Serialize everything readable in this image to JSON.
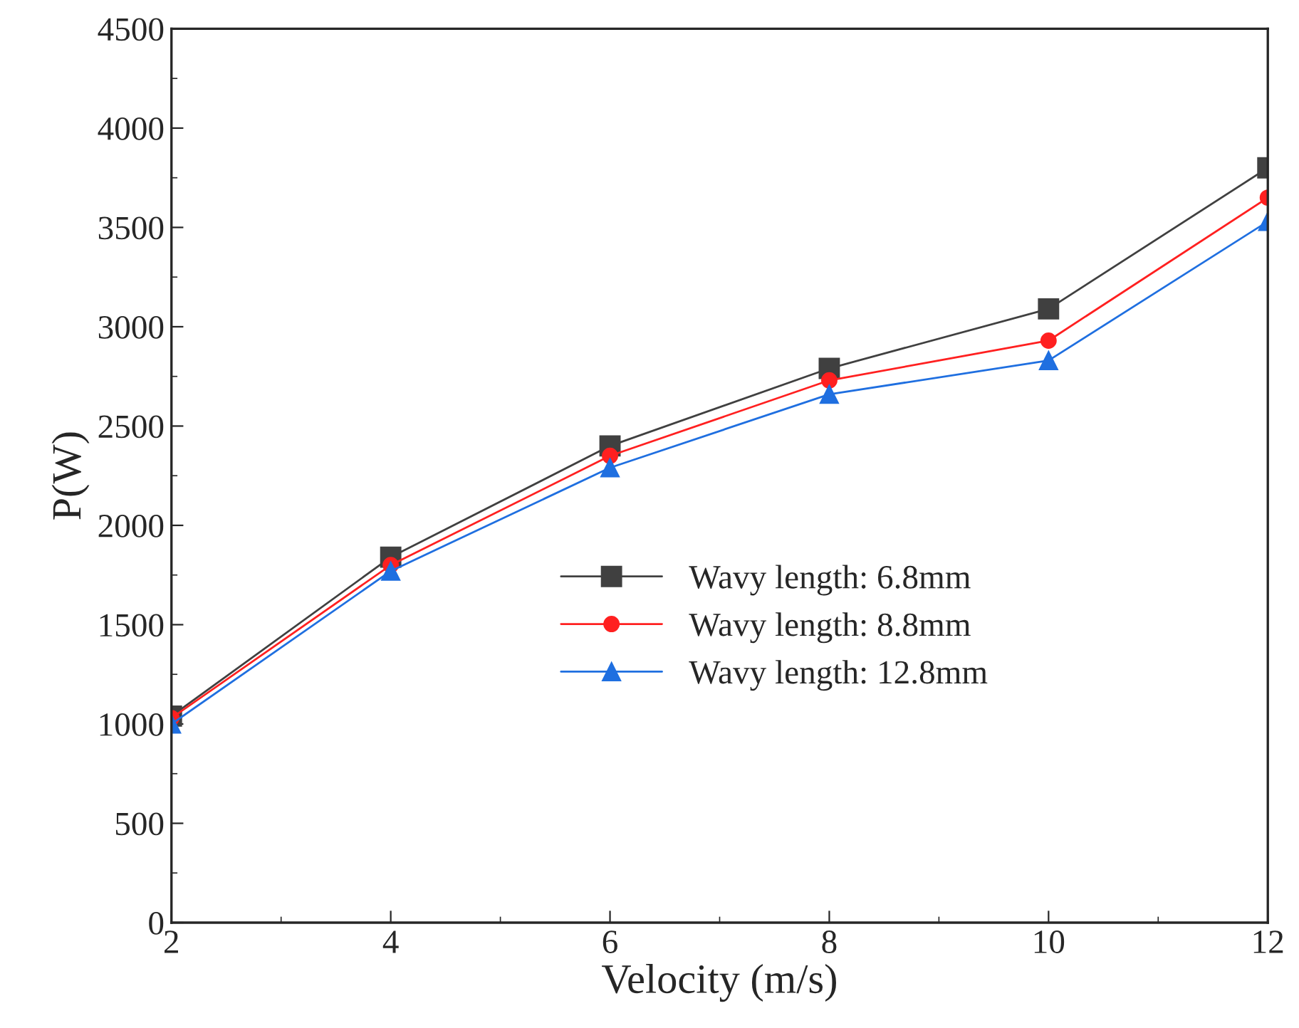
{
  "chart_data": {
    "type": "line",
    "xlabel": "Velocity (m/s)",
    "ylabel": "P(W)",
    "x": [
      2,
      4,
      6,
      8,
      10,
      12
    ],
    "series": [
      {
        "name": "Wavy length: 6.8mm",
        "color": "#404040",
        "marker": "square",
        "values": [
          1040,
          1840,
          2400,
          2790,
          3090,
          3800
        ]
      },
      {
        "name": "Wavy length: 8.8mm",
        "color": "#ff2020",
        "marker": "circle",
        "values": [
          1030,
          1800,
          2350,
          2730,
          2930,
          3650
        ]
      },
      {
        "name": "Wavy length: 12.8mm",
        "color": "#1f6fe0",
        "marker": "triangle",
        "values": [
          1000,
          1770,
          2290,
          2660,
          2830,
          3530
        ]
      }
    ],
    "xlim": [
      2,
      12
    ],
    "xticks": [
      2,
      4,
      6,
      8,
      10,
      12
    ],
    "ylim": [
      0,
      4500
    ],
    "yticks": [
      0,
      500,
      1000,
      1500,
      2000,
      2500,
      3000,
      3500,
      4000,
      4500
    ],
    "grid": false,
    "legend": "center",
    "line_style": "solid"
  }
}
